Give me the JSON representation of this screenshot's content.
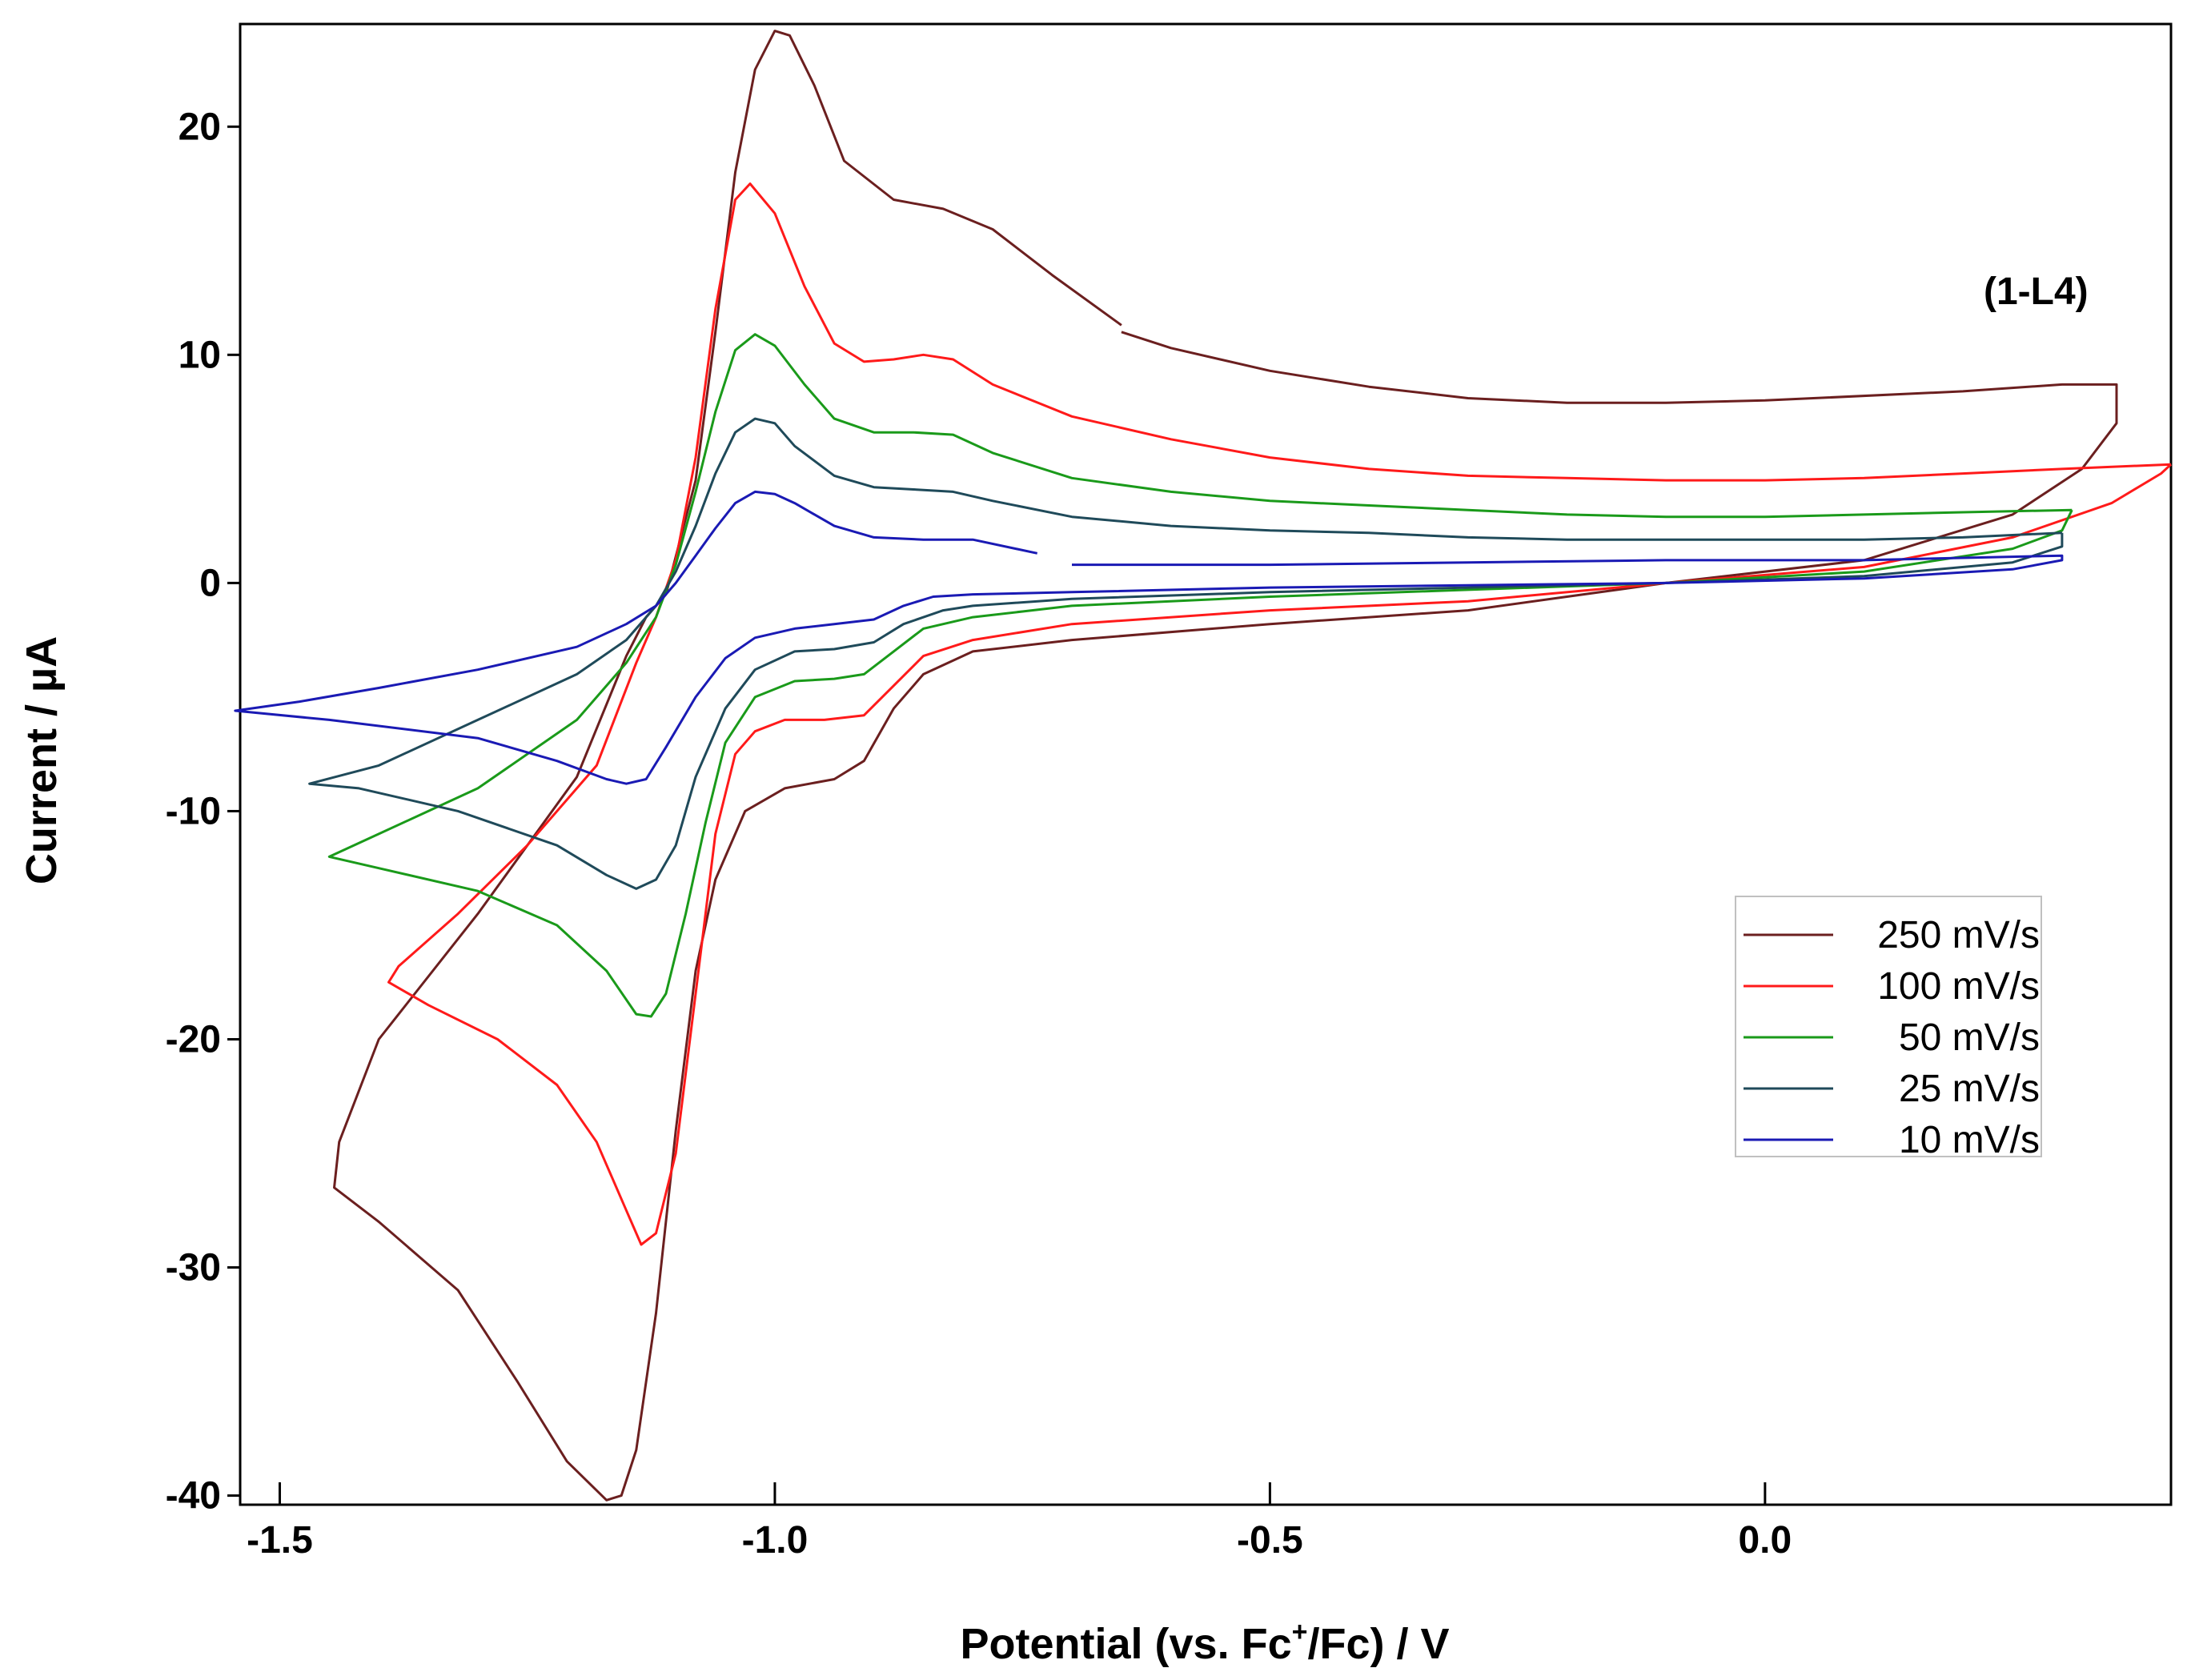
{
  "chart_data": {
    "type": "line",
    "title": "",
    "annotation": "(1-L4)",
    "xlabel": {
      "prefix": "Potential (vs. Fc",
      "sup": "+",
      "suffix": "/Fc) / V"
    },
    "ylabel": "Current / µA",
    "xlim": [
      -1.54,
      0.41
    ],
    "ylim": [
      -40.4,
      24.5
    ],
    "x_ticks": [
      -1.5,
      -1.0,
      -0.5,
      0.0
    ],
    "x_tick_labels": [
      "-1.5",
      "-1.0",
      "-0.5",
      "0.0"
    ],
    "y_ticks": [
      -40,
      -30,
      -20,
      -10,
      0,
      10,
      20
    ],
    "y_tick_labels": [
      "-40",
      "-30",
      "-20",
      "-10",
      "0",
      "10",
      "20"
    ],
    "grid": false,
    "legend_position": "lower-right",
    "series": [
      {
        "name": "250 mV/s",
        "color": "#6b1f1f",
        "points": [
          [
            -0.65,
            11.3
          ],
          [
            -0.72,
            13.5
          ],
          [
            -0.78,
            15.5
          ],
          [
            -0.83,
            16.4
          ],
          [
            -0.88,
            16.8
          ],
          [
            -0.93,
            18.5
          ],
          [
            -0.96,
            21.8
          ],
          [
            -0.985,
            24.0
          ],
          [
            -1.0,
            24.2
          ],
          [
            -1.02,
            22.5
          ],
          [
            -1.04,
            18.0
          ],
          [
            -1.06,
            11.0
          ],
          [
            -1.08,
            4.5
          ],
          [
            -1.11,
            -0.5
          ],
          [
            -1.13,
            -1.5
          ],
          [
            -1.15,
            -3.2
          ],
          [
            -1.2,
            -8.5
          ],
          [
            -1.3,
            -14.5
          ],
          [
            -1.4,
            -20.0
          ],
          [
            -1.44,
            -24.5
          ],
          [
            -1.445,
            -26.5
          ],
          [
            -1.4,
            -28.0
          ],
          [
            -1.32,
            -31.0
          ],
          [
            -1.26,
            -35.0
          ],
          [
            -1.21,
            -38.5
          ],
          [
            -1.17,
            -40.2
          ],
          [
            -1.155,
            -40.0
          ],
          [
            -1.14,
            -38.0
          ],
          [
            -1.12,
            -32.0
          ],
          [
            -1.1,
            -24.0
          ],
          [
            -1.08,
            -17.0
          ],
          [
            -1.06,
            -13.0
          ],
          [
            -1.03,
            -10.0
          ],
          [
            -0.99,
            -9.0
          ],
          [
            -0.94,
            -8.6
          ],
          [
            -0.91,
            -7.8
          ],
          [
            -0.88,
            -5.5
          ],
          [
            -0.85,
            -4.0
          ],
          [
            -0.8,
            -3.0
          ],
          [
            -0.7,
            -2.5
          ],
          [
            -0.5,
            -1.8
          ],
          [
            -0.3,
            -1.2
          ],
          [
            -0.1,
            0.0
          ],
          [
            0.1,
            1.0
          ],
          [
            0.25,
            3.0
          ],
          [
            0.32,
            5.0
          ],
          [
            0.355,
            7.0
          ],
          [
            0.355,
            8.7
          ],
          [
            0.3,
            8.7
          ],
          [
            0.2,
            8.4
          ],
          [
            0.0,
            8.0
          ],
          [
            -0.1,
            7.9
          ],
          [
            -0.2,
            7.9
          ],
          [
            -0.3,
            8.1
          ],
          [
            -0.4,
            8.6
          ],
          [
            -0.5,
            9.3
          ],
          [
            -0.6,
            10.3
          ],
          [
            -0.65,
            11.0
          ]
        ]
      },
      {
        "name": "100 mV/s",
        "color": "#ff1a1a",
        "points": [
          [
            0.41,
            5.2
          ],
          [
            0.3,
            5.0
          ],
          [
            0.2,
            4.8
          ],
          [
            0.1,
            4.6
          ],
          [
            0.0,
            4.5
          ],
          [
            -0.1,
            4.5
          ],
          [
            -0.2,
            4.6
          ],
          [
            -0.3,
            4.7
          ],
          [
            -0.4,
            5.0
          ],
          [
            -0.5,
            5.5
          ],
          [
            -0.6,
            6.3
          ],
          [
            -0.7,
            7.3
          ],
          [
            -0.78,
            8.7
          ],
          [
            -0.82,
            9.8
          ],
          [
            -0.85,
            10.0
          ],
          [
            -0.88,
            9.8
          ],
          [
            -0.91,
            9.7
          ],
          [
            -0.94,
            10.5
          ],
          [
            -0.97,
            13.0
          ],
          [
            -1.0,
            16.2
          ],
          [
            -1.025,
            17.5
          ],
          [
            -1.04,
            16.8
          ],
          [
            -1.06,
            12.0
          ],
          [
            -1.08,
            5.5
          ],
          [
            -1.1,
            1.0
          ],
          [
            -1.12,
            -1.5
          ],
          [
            -1.14,
            -3.5
          ],
          [
            -1.18,
            -8.0
          ],
          [
            -1.25,
            -11.5
          ],
          [
            -1.32,
            -14.5
          ],
          [
            -1.38,
            -16.8
          ],
          [
            -1.39,
            -17.5
          ],
          [
            -1.35,
            -18.5
          ],
          [
            -1.28,
            -20.0
          ],
          [
            -1.22,
            -22.0
          ],
          [
            -1.18,
            -24.5
          ],
          [
            -1.15,
            -27.5
          ],
          [
            -1.135,
            -29.0
          ],
          [
            -1.12,
            -28.5
          ],
          [
            -1.1,
            -25.0
          ],
          [
            -1.08,
            -18.0
          ],
          [
            -1.06,
            -11.0
          ],
          [
            -1.04,
            -7.5
          ],
          [
            -1.02,
            -6.5
          ],
          [
            -0.99,
            -6.0
          ],
          [
            -0.95,
            -6.0
          ],
          [
            -0.91,
            -5.8
          ],
          [
            -0.88,
            -4.5
          ],
          [
            -0.85,
            -3.2
          ],
          [
            -0.8,
            -2.5
          ],
          [
            -0.7,
            -1.8
          ],
          [
            -0.5,
            -1.2
          ],
          [
            -0.3,
            -0.8
          ],
          [
            -0.1,
            0.0
          ],
          [
            0.1,
            0.7
          ],
          [
            0.25,
            2.0
          ],
          [
            0.35,
            3.5
          ],
          [
            0.4,
            4.8
          ],
          [
            0.41,
            5.2
          ]
        ]
      },
      {
        "name": "50 mV/s",
        "color": "#1a9a1a",
        "points": [
          [
            0.31,
            3.2
          ],
          [
            0.2,
            3.1
          ],
          [
            0.1,
            3.0
          ],
          [
            0.0,
            2.9
          ],
          [
            -0.1,
            2.9
          ],
          [
            -0.2,
            3.0
          ],
          [
            -0.3,
            3.2
          ],
          [
            -0.4,
            3.4
          ],
          [
            -0.5,
            3.6
          ],
          [
            -0.6,
            4.0
          ],
          [
            -0.7,
            4.6
          ],
          [
            -0.78,
            5.7
          ],
          [
            -0.82,
            6.5
          ],
          [
            -0.86,
            6.6
          ],
          [
            -0.9,
            6.6
          ],
          [
            -0.94,
            7.2
          ],
          [
            -0.97,
            8.7
          ],
          [
            -1.0,
            10.4
          ],
          [
            -1.02,
            10.9
          ],
          [
            -1.04,
            10.2
          ],
          [
            -1.06,
            7.5
          ],
          [
            -1.08,
            4.0
          ],
          [
            -1.1,
            0.8
          ],
          [
            -1.12,
            -1.5
          ],
          [
            -1.15,
            -3.5
          ],
          [
            -1.2,
            -6.0
          ],
          [
            -1.3,
            -9.0
          ],
          [
            -1.4,
            -11.0
          ],
          [
            -1.45,
            -12.0
          ],
          [
            -1.4,
            -12.5
          ],
          [
            -1.3,
            -13.5
          ],
          [
            -1.22,
            -15.0
          ],
          [
            -1.17,
            -17.0
          ],
          [
            -1.14,
            -18.9
          ],
          [
            -1.125,
            -19.0
          ],
          [
            -1.11,
            -18.0
          ],
          [
            -1.09,
            -14.5
          ],
          [
            -1.07,
            -10.5
          ],
          [
            -1.05,
            -7.0
          ],
          [
            -1.02,
            -5.0
          ],
          [
            -0.98,
            -4.3
          ],
          [
            -0.94,
            -4.2
          ],
          [
            -0.91,
            -4.0
          ],
          [
            -0.88,
            -3.0
          ],
          [
            -0.85,
            -2.0
          ],
          [
            -0.8,
            -1.5
          ],
          [
            -0.7,
            -1.0
          ],
          [
            -0.5,
            -0.6
          ],
          [
            -0.3,
            -0.3
          ],
          [
            -0.1,
            0.0
          ],
          [
            0.1,
            0.5
          ],
          [
            0.25,
            1.5
          ],
          [
            0.3,
            2.3
          ],
          [
            0.31,
            3.2
          ]
        ]
      },
      {
        "name": "25 mV/s",
        "color": "#1f4a5a",
        "points": [
          [
            0.3,
            2.2
          ],
          [
            0.2,
            2.0
          ],
          [
            0.1,
            1.9
          ],
          [
            0.0,
            1.9
          ],
          [
            -0.1,
            1.9
          ],
          [
            -0.2,
            1.9
          ],
          [
            -0.3,
            2.0
          ],
          [
            -0.4,
            2.2
          ],
          [
            -0.5,
            2.3
          ],
          [
            -0.6,
            2.5
          ],
          [
            -0.7,
            2.9
          ],
          [
            -0.78,
            3.6
          ],
          [
            -0.82,
            4.0
          ],
          [
            -0.86,
            4.1
          ],
          [
            -0.9,
            4.2
          ],
          [
            -0.94,
            4.7
          ],
          [
            -0.98,
            6.0
          ],
          [
            -1.0,
            7.0
          ],
          [
            -1.02,
            7.2
          ],
          [
            -1.04,
            6.6
          ],
          [
            -1.06,
            4.8
          ],
          [
            -1.08,
            2.5
          ],
          [
            -1.1,
            0.5
          ],
          [
            -1.12,
            -1.0
          ],
          [
            -1.15,
            -2.5
          ],
          [
            -1.2,
            -4.0
          ],
          [
            -1.3,
            -6.0
          ],
          [
            -1.4,
            -8.0
          ],
          [
            -1.47,
            -8.8
          ],
          [
            -1.42,
            -9.0
          ],
          [
            -1.32,
            -10.0
          ],
          [
            -1.22,
            -11.5
          ],
          [
            -1.17,
            -12.8
          ],
          [
            -1.14,
            -13.4
          ],
          [
            -1.12,
            -13.0
          ],
          [
            -1.1,
            -11.5
          ],
          [
            -1.08,
            -8.5
          ],
          [
            -1.05,
            -5.5
          ],
          [
            -1.02,
            -3.8
          ],
          [
            -0.98,
            -3.0
          ],
          [
            -0.94,
            -2.9
          ],
          [
            -0.9,
            -2.6
          ],
          [
            -0.87,
            -1.8
          ],
          [
            -0.83,
            -1.2
          ],
          [
            -0.8,
            -1.0
          ],
          [
            -0.7,
            -0.7
          ],
          [
            -0.5,
            -0.4
          ],
          [
            -0.3,
            -0.2
          ],
          [
            -0.1,
            0.0
          ],
          [
            0.1,
            0.3
          ],
          [
            0.25,
            0.9
          ],
          [
            0.3,
            1.6
          ],
          [
            0.3,
            2.2
          ]
        ]
      },
      {
        "name": "10 mV/s",
        "color": "#1a1ab4",
        "points": [
          [
            -0.735,
            1.3
          ],
          [
            -0.8,
            1.9
          ],
          [
            -0.85,
            1.9
          ],
          [
            -0.9,
            2.0
          ],
          [
            -0.94,
            2.5
          ],
          [
            -0.98,
            3.5
          ],
          [
            -1.0,
            3.9
          ],
          [
            -1.02,
            4.0
          ],
          [
            -1.04,
            3.5
          ],
          [
            -1.06,
            2.4
          ],
          [
            -1.08,
            1.2
          ],
          [
            -1.1,
            0.0
          ],
          [
            -1.12,
            -1.0
          ],
          [
            -1.15,
            -1.8
          ],
          [
            -1.2,
            -2.8
          ],
          [
            -1.3,
            -3.8
          ],
          [
            -1.4,
            -4.6
          ],
          [
            -1.48,
            -5.2
          ],
          [
            -1.545,
            -5.6
          ],
          [
            -1.45,
            -6.0
          ],
          [
            -1.3,
            -6.8
          ],
          [
            -1.22,
            -7.8
          ],
          [
            -1.17,
            -8.6
          ],
          [
            -1.15,
            -8.8
          ],
          [
            -1.13,
            -8.6
          ],
          [
            -1.11,
            -7.2
          ],
          [
            -1.08,
            -5.0
          ],
          [
            -1.05,
            -3.3
          ],
          [
            -1.02,
            -2.4
          ],
          [
            -0.98,
            -2.0
          ],
          [
            -0.94,
            -1.8
          ],
          [
            -0.9,
            -1.6
          ],
          [
            -0.87,
            -1.0
          ],
          [
            -0.84,
            -0.6
          ],
          [
            -0.8,
            -0.5
          ],
          [
            -0.7,
            -0.4
          ],
          [
            -0.5,
            -0.2
          ],
          [
            -0.3,
            -0.1
          ],
          [
            -0.1,
            0.0
          ],
          [
            0.1,
            0.2
          ],
          [
            0.25,
            0.6
          ],
          [
            0.3,
            1.0
          ],
          [
            0.3,
            1.2
          ],
          [
            0.2,
            1.1
          ],
          [
            0.1,
            1.0
          ],
          [
            -0.1,
            1.0
          ],
          [
            -0.3,
            0.9
          ],
          [
            -0.5,
            0.8
          ],
          [
            -0.65,
            0.8
          ],
          [
            -0.7,
            0.8
          ]
        ]
      }
    ]
  }
}
